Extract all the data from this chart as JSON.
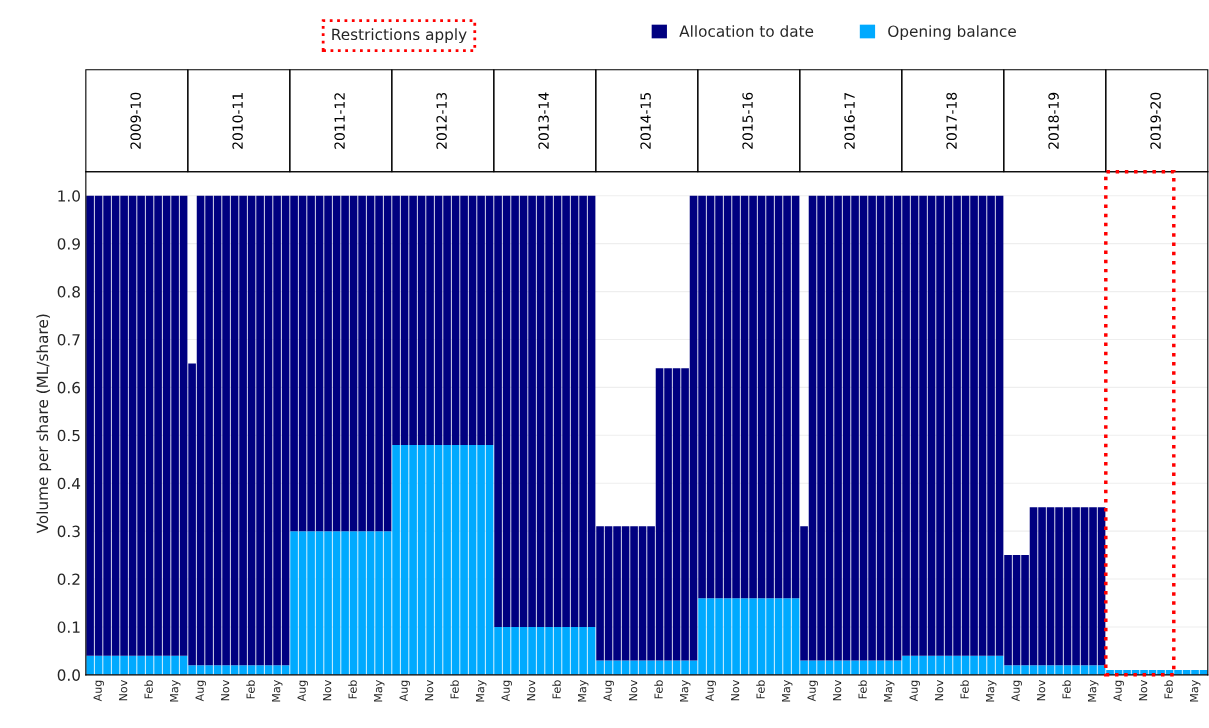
{
  "chart_data": {
    "type": "bar",
    "stacked": true,
    "ylabel": "Volume per share (ML/share)",
    "legend": "top",
    "grid": "y",
    "ylim": [
      0,
      1.05
    ],
    "yticks": [
      {
        "value": 0,
        "label": "0.0"
      },
      0.1,
      0.2,
      0.3,
      0.4,
      0.5,
      0.6,
      0.7,
      0.8,
      0.9,
      {
        "value": 1,
        "label": "1.0"
      }
    ],
    "categories": [
      null,
      "Aug",
      null,
      null,
      "Nov",
      null,
      null,
      "Feb",
      null,
      null,
      "May",
      null,
      null,
      "Aug",
      null,
      null,
      "Nov",
      null,
      null,
      "Feb",
      null,
      null,
      "May",
      null,
      null,
      "Aug",
      null,
      null,
      "Nov",
      null,
      null,
      "Feb",
      null,
      null,
      "May",
      null,
      null,
      "Aug",
      null,
      null,
      "Nov",
      null,
      null,
      "Feb",
      null,
      null,
      "May",
      null,
      null,
      "Aug",
      null,
      null,
      "Nov",
      null,
      null,
      "Feb",
      null,
      null,
      "May",
      null,
      null,
      "Aug",
      null,
      null,
      "Nov",
      null,
      null,
      "Feb",
      null,
      null,
      "May",
      null,
      null,
      "Aug",
      null,
      null,
      "Nov",
      null,
      null,
      "Feb",
      null,
      null,
      "May",
      null,
      null,
      "Aug",
      null,
      null,
      "Nov",
      null,
      null,
      "Feb",
      null,
      null,
      "May",
      null,
      null,
      "Aug",
      null,
      null,
      "Nov",
      null,
      null,
      "Feb",
      null,
      null,
      "May",
      null,
      null,
      "Aug",
      null,
      null,
      "Nov",
      null,
      null,
      "Feb",
      null,
      null,
      "May",
      null,
      null,
      "Aug",
      null,
      null,
      "Nov",
      null,
      null,
      "Feb",
      null,
      null,
      "May",
      null
    ],
    "series": [
      {
        "name": "Opening balance",
        "color": "#00aaff",
        "values": [
          0.04,
          0.04,
          0.04,
          0.04,
          0.04,
          0.04,
          0.04,
          0.04,
          0.04,
          0.04,
          0.04,
          0.04,
          0.02,
          0.02,
          0.02,
          0.02,
          0.02,
          0.02,
          0.02,
          0.02,
          0.02,
          0.02,
          0.02,
          0.02,
          0.3,
          0.3,
          0.3,
          0.3,
          0.3,
          0.3,
          0.3,
          0.3,
          0.3,
          0.3,
          0.3,
          0.3,
          0.48,
          0.48,
          0.48,
          0.48,
          0.48,
          0.48,
          0.48,
          0.48,
          0.48,
          0.48,
          0.48,
          0.48,
          0.1,
          0.1,
          0.1,
          0.1,
          0.1,
          0.1,
          0.1,
          0.1,
          0.1,
          0.1,
          0.1,
          0.1,
          0.03,
          0.03,
          0.03,
          0.03,
          0.03,
          0.03,
          0.03,
          0.03,
          0.03,
          0.03,
          0.03,
          0.03,
          0.16,
          0.16,
          0.16,
          0.16,
          0.16,
          0.16,
          0.16,
          0.16,
          0.16,
          0.16,
          0.16,
          0.16,
          0.03,
          0.03,
          0.03,
          0.03,
          0.03,
          0.03,
          0.03,
          0.03,
          0.03,
          0.03,
          0.03,
          0.03,
          0.04,
          0.04,
          0.04,
          0.04,
          0.04,
          0.04,
          0.04,
          0.04,
          0.04,
          0.04,
          0.04,
          0.04,
          0.02,
          0.02,
          0.02,
          0.02,
          0.02,
          0.02,
          0.02,
          0.02,
          0.02,
          0.02,
          0.02,
          0.02,
          0.01,
          0.01,
          0.01,
          0.01,
          0.01,
          0.01,
          0.01,
          0.01,
          0.01,
          0.01,
          0.01,
          0.01
        ]
      },
      {
        "name": "Allocation to date",
        "color": "#000080",
        "values": [
          0.96,
          0.96,
          0.96,
          0.96,
          0.96,
          0.96,
          0.96,
          0.96,
          0.96,
          0.96,
          0.96,
          0.96,
          0.63,
          0.98,
          0.98,
          0.98,
          0.98,
          0.98,
          0.98,
          0.98,
          0.98,
          0.98,
          0.98,
          0.98,
          0.7,
          0.7,
          0.7,
          0.7,
          0.7,
          0.7,
          0.7,
          0.7,
          0.7,
          0.7,
          0.7,
          0.7,
          0.52,
          0.52,
          0.52,
          0.52,
          0.52,
          0.52,
          0.52,
          0.52,
          0.52,
          0.52,
          0.52,
          0.52,
          0.9,
          0.9,
          0.9,
          0.9,
          0.9,
          0.9,
          0.9,
          0.9,
          0.9,
          0.9,
          0.9,
          0.9,
          0.28,
          0.28,
          0.28,
          0.28,
          0.28,
          0.28,
          0.28,
          0.61,
          0.61,
          0.61,
          0.61,
          0.97,
          0.84,
          0.84,
          0.84,
          0.84,
          0.84,
          0.84,
          0.84,
          0.84,
          0.84,
          0.84,
          0.84,
          0.84,
          0.28,
          0.97,
          0.97,
          0.97,
          0.97,
          0.97,
          0.97,
          0.97,
          0.97,
          0.97,
          0.97,
          0.97,
          0.96,
          0.96,
          0.96,
          0.96,
          0.96,
          0.96,
          0.96,
          0.96,
          0.96,
          0.96,
          0.96,
          0.96,
          0.23,
          0.23,
          0.23,
          0.33,
          0.33,
          0.33,
          0.33,
          0.33,
          0.33,
          0.33,
          0.33,
          0.33,
          null,
          null,
          null,
          null,
          null,
          null,
          null,
          null,
          null,
          null,
          null,
          null
        ]
      }
    ],
    "annotations": [
      "Restrictions apply",
      "2009-10",
      "2010-11",
      "2011-12",
      "2012-13",
      "2013-14",
      "2014-15",
      "2015-16",
      "2016-17",
      "2017-18",
      "2018-19",
      "2019-20"
    ]
  }
}
